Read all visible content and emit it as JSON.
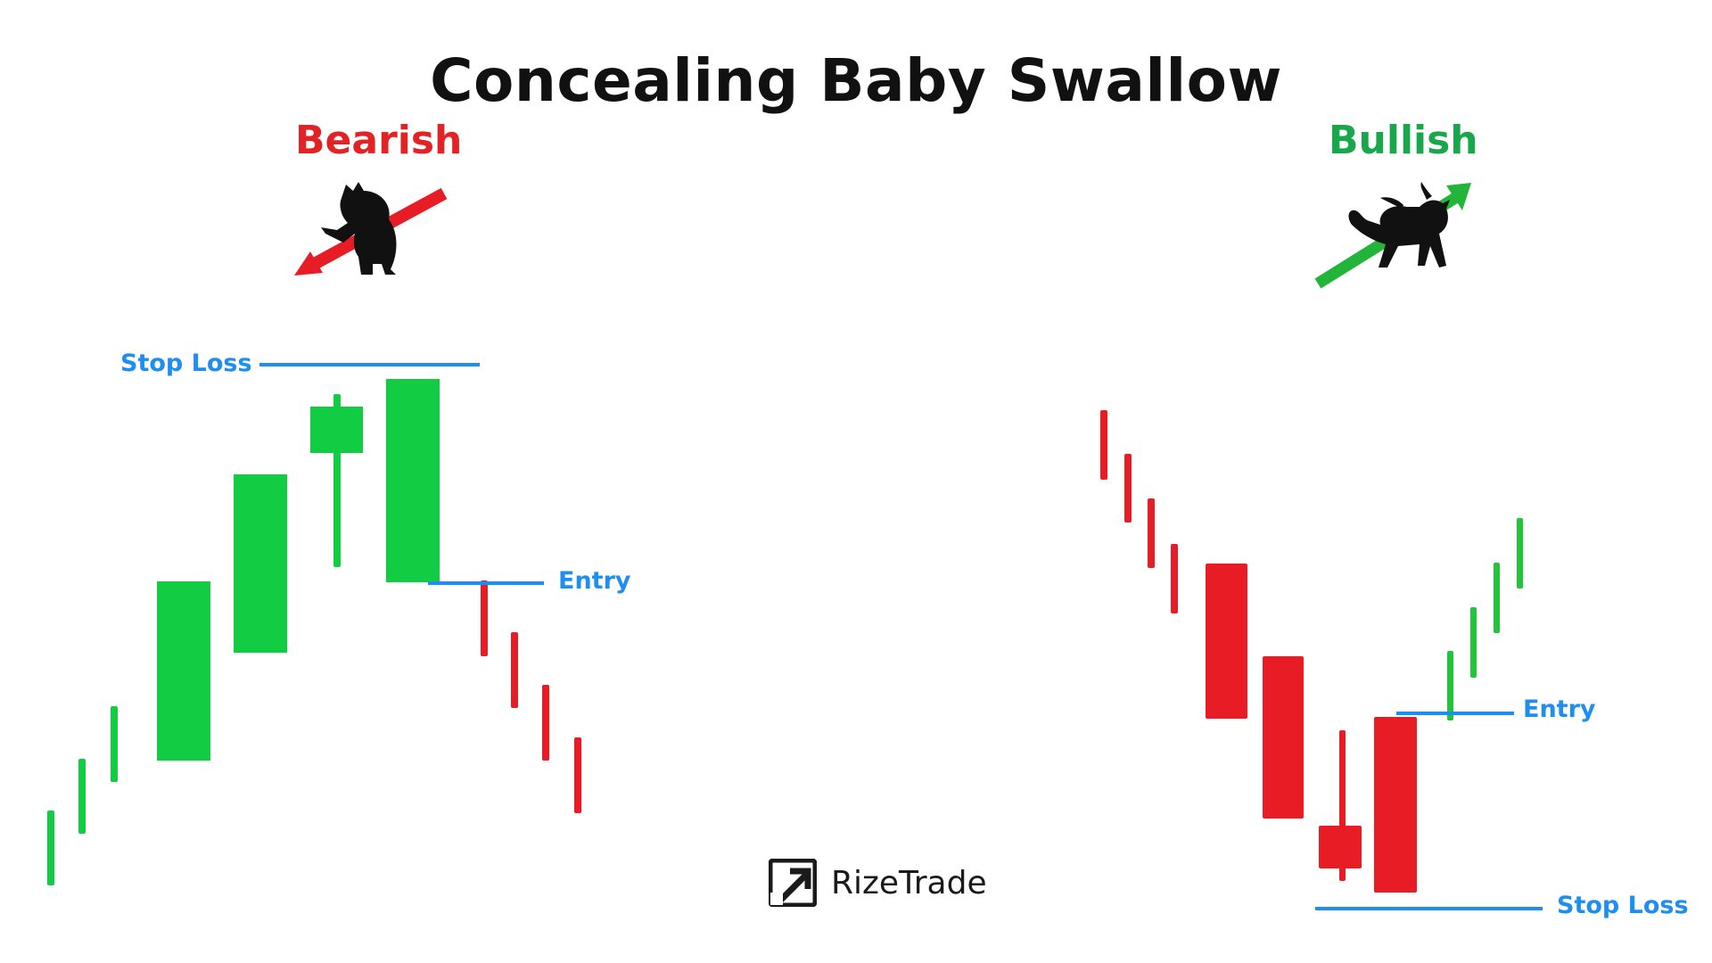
{
  "title": "Concealing Baby Swallow",
  "colors": {
    "bullish": "#12cc44",
    "bearish": "#e81c24",
    "annotation": "#1f8ef1",
    "bearish_label": "#e32226",
    "bullish_label": "#1aa64a",
    "text": "#111111"
  },
  "bearish": {
    "label": "Bearish",
    "icon": "bear-icon",
    "arrow_icon": "down-arrow-icon",
    "stop_loss_label": "Stop Loss",
    "entry_label": "Entry"
  },
  "bullish": {
    "label": "Bullish",
    "icon": "bull-icon",
    "arrow_icon": "up-arrow-icon",
    "stop_loss_label": "Stop Loss",
    "entry_label": "Entry"
  },
  "brand": {
    "name": "RizeTrade",
    "icon": "rizetrade-logo-icon"
  }
}
